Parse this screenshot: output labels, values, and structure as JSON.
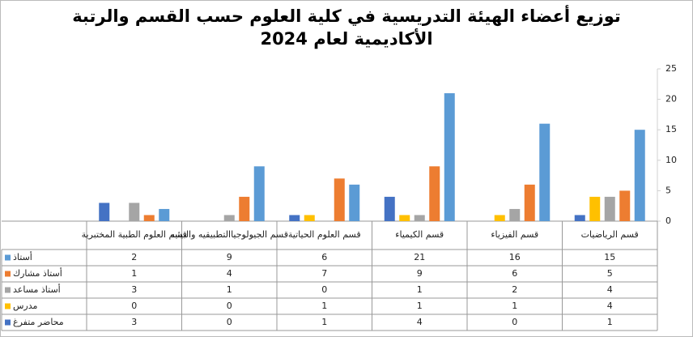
{
  "chart_data": {
    "type": "bar",
    "title": "توزيع أعضاء الهيئة التدريسية في كلية العلوم حسب القسم والرتبة الأكاديمية لعام 2024",
    "categories": [
      "قسم الرياضيات",
      "قسم الفيزياء",
      "قسم الكيمياء",
      "قسم العلوم الحياتية",
      "قسم الجيولوجياالتطبيقيه والبيئيه",
      "قسم العلوم الطبية المختبرية"
    ],
    "series": [
      {
        "name": "أستاذ",
        "color": "#5b9bd5",
        "values": [
          15,
          16,
          21,
          6,
          9,
          2
        ]
      },
      {
        "name": "أستاذ مشارك",
        "color": "#ed7d31",
        "values": [
          5,
          6,
          9,
          7,
          4,
          1
        ]
      },
      {
        "name": "أستاذ مساعد",
        "color": "#a5a5a5",
        "values": [
          4,
          2,
          1,
          0,
          1,
          3
        ]
      },
      {
        "name": "مدرس",
        "color": "#ffc000",
        "values": [
          4,
          1,
          1,
          1,
          0,
          0
        ]
      },
      {
        "name": "محاضر متفرغ",
        "color": "#4472c4",
        "values": [
          1,
          0,
          4,
          1,
          0,
          3
        ]
      }
    ],
    "ylim": [
      0,
      25
    ],
    "yticks": [
      0,
      5,
      10,
      15,
      20,
      25
    ],
    "grid": false
  }
}
